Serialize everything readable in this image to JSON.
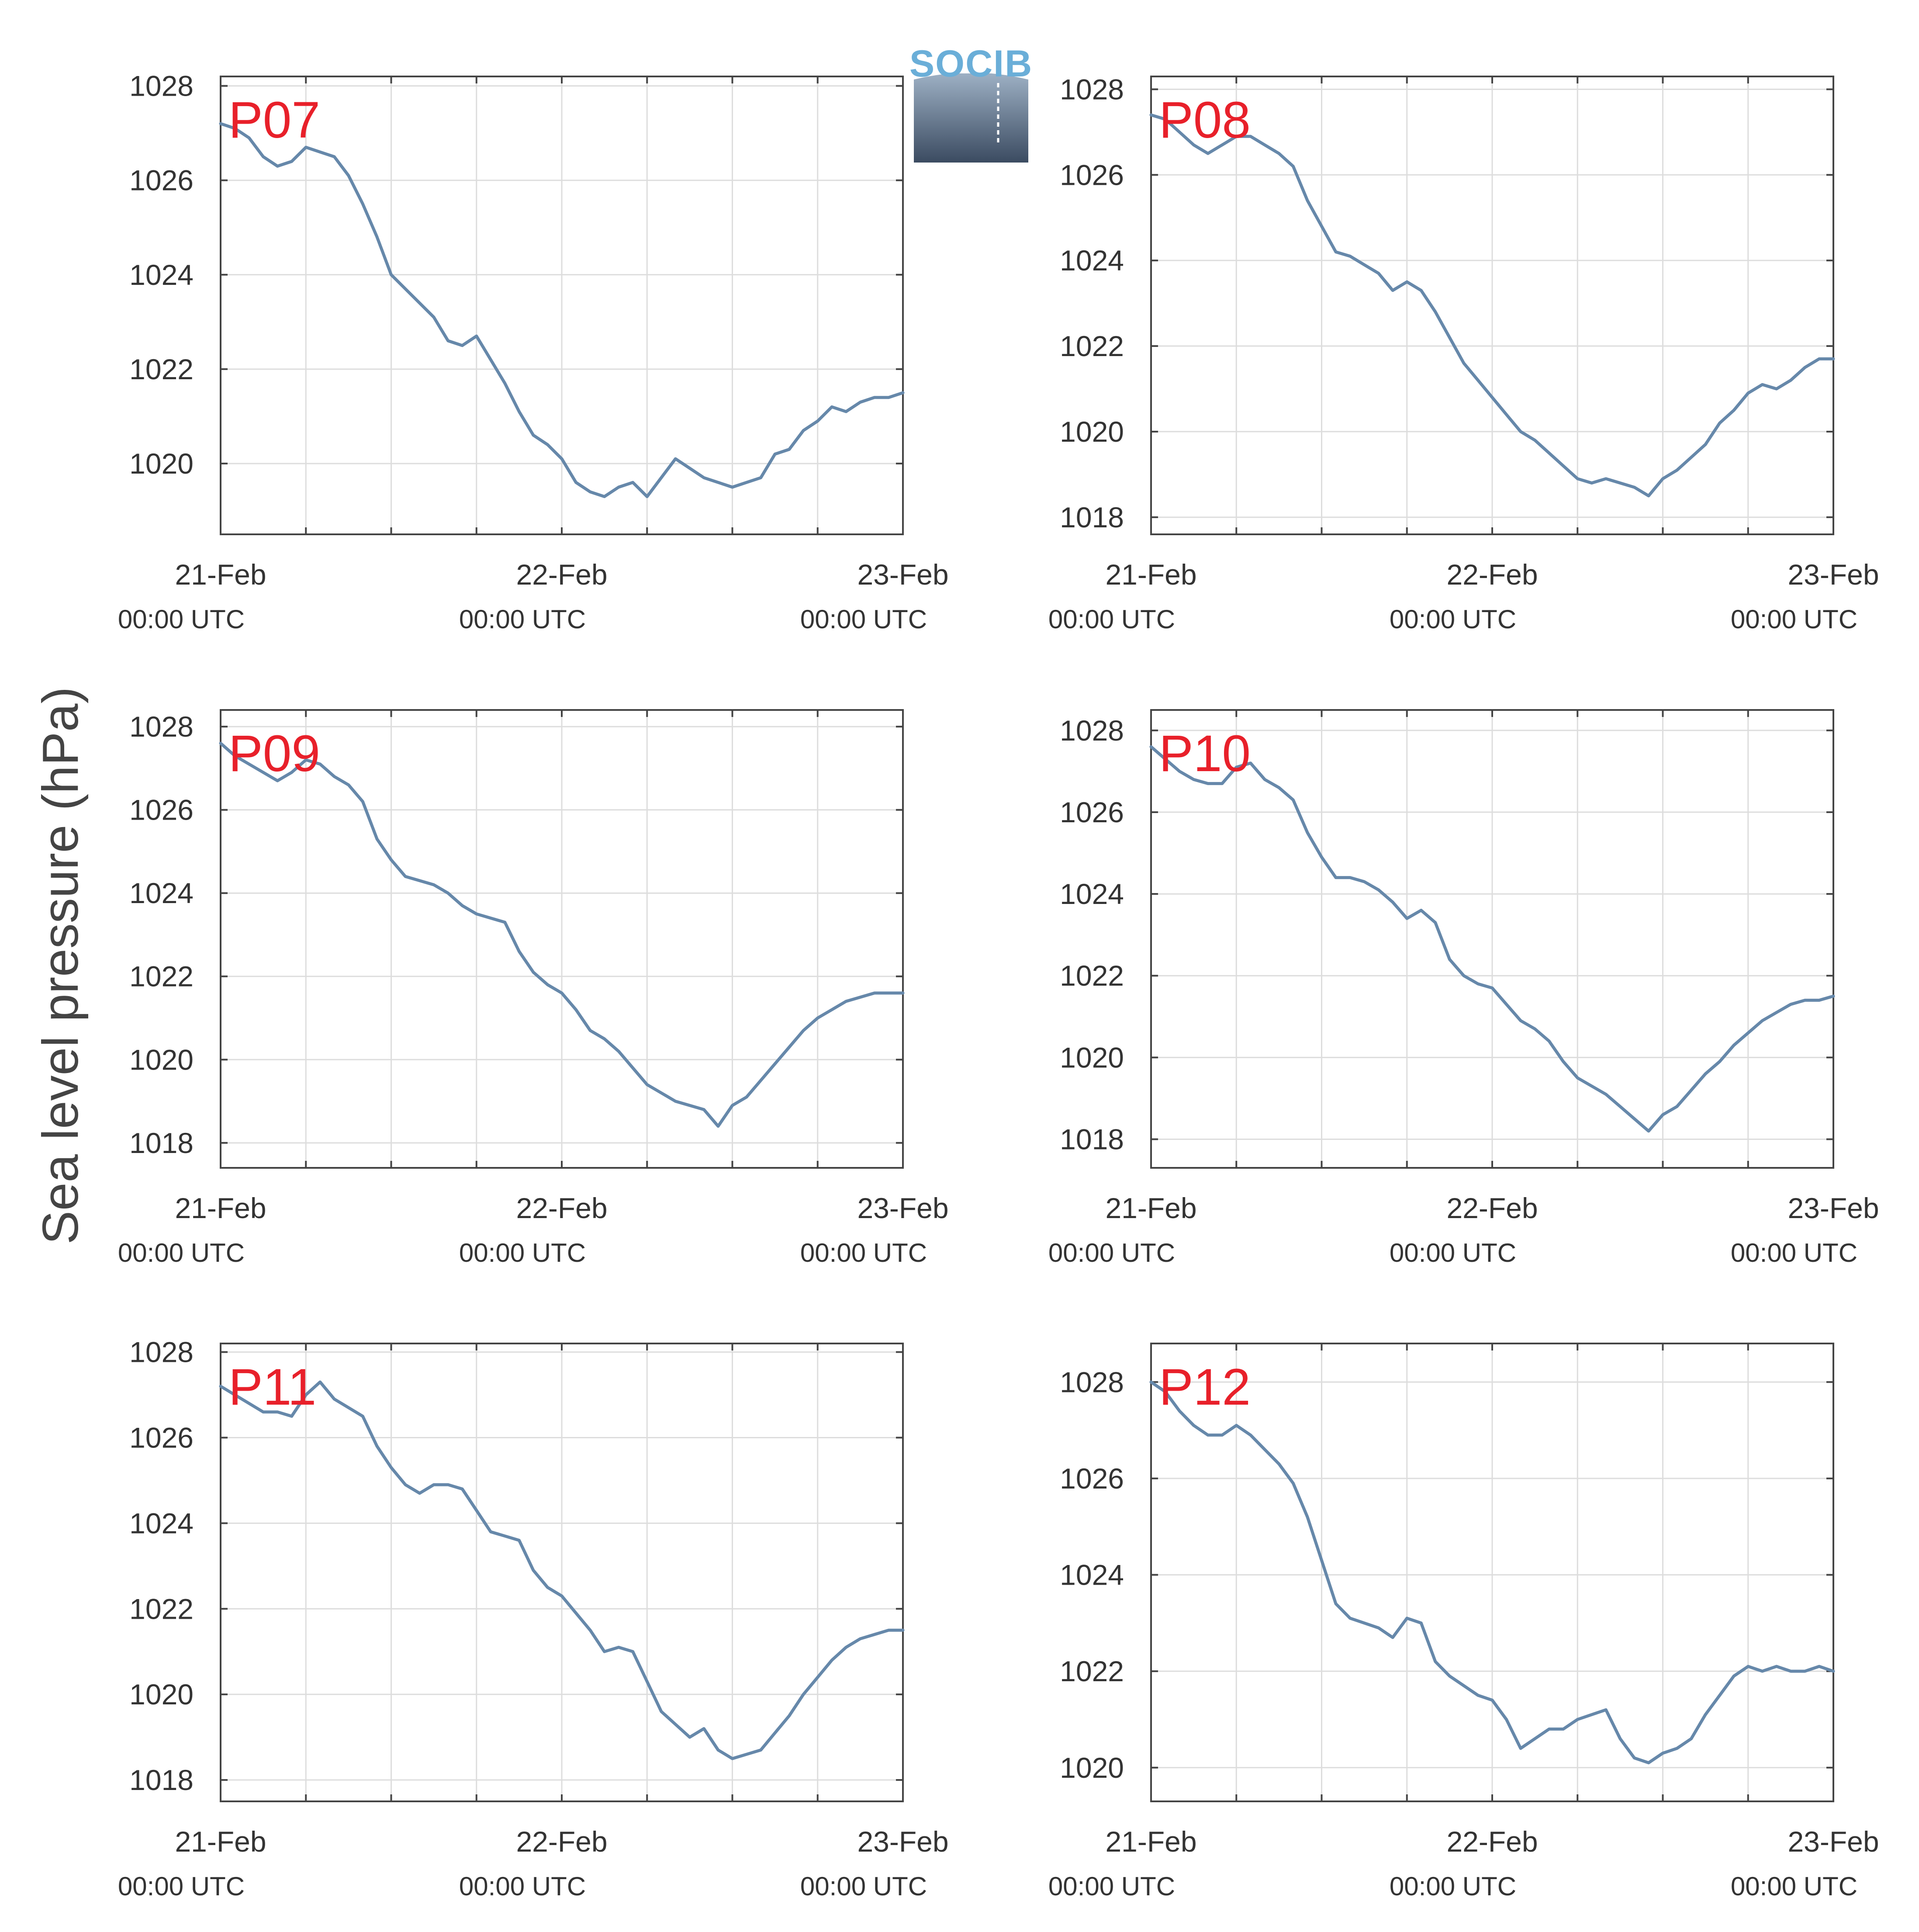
{
  "ylabel": "Sea level pressure (hPa)",
  "logo": {
    "text": "SOCIB"
  },
  "colors": {
    "line": "#6688aa",
    "label": "#e8202a",
    "grid": "#dddddd",
    "axis": "#444444",
    "logo_text": "#6aaed8"
  },
  "chart_data": [
    {
      "type": "line",
      "label": "P07",
      "ylim": [
        1018.5,
        1028.2
      ],
      "yticks": [
        1020,
        1022,
        1024,
        1026,
        1028
      ],
      "xlim": [
        0,
        48
      ],
      "xticks": [
        {
          "x": 0,
          "date": "21-Feb",
          "time": "00:00 UTC"
        },
        {
          "x": 24,
          "date": "22-Feb",
          "time": "00:00 UTC"
        },
        {
          "x": 48,
          "date": "23-Feb",
          "time": "00:00 UTC"
        }
      ],
      "x": [
        0,
        1,
        2,
        3,
        4,
        5,
        6,
        7,
        8,
        9,
        10,
        11,
        12,
        13,
        14,
        15,
        16,
        17,
        18,
        19,
        20,
        21,
        22,
        23,
        24,
        25,
        26,
        27,
        28,
        29,
        30,
        31,
        32,
        33,
        34,
        35,
        36,
        37,
        38,
        39,
        40,
        41,
        42,
        43,
        44,
        45,
        46,
        47,
        48
      ],
      "values": [
        1027.2,
        1027.1,
        1026.9,
        1026.5,
        1026.3,
        1026.4,
        1026.7,
        1026.6,
        1026.5,
        1026.1,
        1025.5,
        1024.8,
        1024.0,
        1023.7,
        1023.4,
        1023.1,
        1022.6,
        1022.5,
        1022.7,
        1022.2,
        1021.7,
        1021.1,
        1020.6,
        1020.4,
        1020.1,
        1019.6,
        1019.4,
        1019.3,
        1019.5,
        1019.6,
        1019.3,
        1019.7,
        1020.1,
        1019.9,
        1019.7,
        1019.6,
        1019.5,
        1019.6,
        1019.7,
        1020.2,
        1020.3,
        1020.7,
        1020.9,
        1021.2,
        1021.1,
        1021.3,
        1021.4,
        1021.4,
        1021.5
      ]
    },
    {
      "type": "line",
      "label": "P08",
      "ylim": [
        1017.6,
        1028.3
      ],
      "yticks": [
        1018,
        1020,
        1022,
        1024,
        1026,
        1028
      ],
      "xlim": [
        0,
        48
      ],
      "xticks": [
        {
          "x": 0,
          "date": "21-Feb",
          "time": "00:00 UTC"
        },
        {
          "x": 24,
          "date": "22-Feb",
          "time": "00:00 UTC"
        },
        {
          "x": 48,
          "date": "23-Feb",
          "time": "00:00 UTC"
        }
      ],
      "x": [
        0,
        1,
        2,
        3,
        4,
        5,
        6,
        7,
        8,
        9,
        10,
        11,
        12,
        13,
        14,
        15,
        16,
        17,
        18,
        19,
        20,
        21,
        22,
        23,
        24,
        25,
        26,
        27,
        28,
        29,
        30,
        31,
        32,
        33,
        34,
        35,
        36,
        37,
        38,
        39,
        40,
        41,
        42,
        43,
        44,
        45,
        46,
        47,
        48
      ],
      "values": [
        1027.4,
        1027.3,
        1027.0,
        1026.7,
        1026.5,
        1026.7,
        1026.9,
        1026.9,
        1026.7,
        1026.5,
        1026.2,
        1025.4,
        1024.8,
        1024.2,
        1024.1,
        1023.9,
        1023.7,
        1023.3,
        1023.5,
        1023.3,
        1022.8,
        1022.2,
        1021.6,
        1021.2,
        1020.8,
        1020.4,
        1020.0,
        1019.8,
        1019.5,
        1019.2,
        1018.9,
        1018.8,
        1018.9,
        1018.8,
        1018.7,
        1018.5,
        1018.9,
        1019.1,
        1019.4,
        1019.7,
        1020.2,
        1020.5,
        1020.9,
        1021.1,
        1021.0,
        1021.2,
        1021.5,
        1021.7,
        1021.7
      ]
    },
    {
      "type": "line",
      "label": "P09",
      "ylim": [
        1017.4,
        1028.4
      ],
      "yticks": [
        1018,
        1020,
        1022,
        1024,
        1026,
        1028
      ],
      "xlim": [
        0,
        48
      ],
      "xticks": [
        {
          "x": 0,
          "date": "21-Feb",
          "time": "00:00 UTC"
        },
        {
          "x": 24,
          "date": "22-Feb",
          "time": "00:00 UTC"
        },
        {
          "x": 48,
          "date": "23-Feb",
          "time": "00:00 UTC"
        }
      ],
      "x": [
        0,
        1,
        2,
        3,
        4,
        5,
        6,
        7,
        8,
        9,
        10,
        11,
        12,
        13,
        14,
        15,
        16,
        17,
        18,
        19,
        20,
        21,
        22,
        23,
        24,
        25,
        26,
        27,
        28,
        29,
        30,
        31,
        32,
        33,
        34,
        35,
        36,
        37,
        38,
        39,
        40,
        41,
        42,
        43,
        44,
        45,
        46,
        47,
        48
      ],
      "values": [
        1027.6,
        1027.3,
        1027.1,
        1026.9,
        1026.7,
        1026.9,
        1027.2,
        1027.1,
        1026.8,
        1026.6,
        1026.2,
        1025.3,
        1024.8,
        1024.4,
        1024.3,
        1024.2,
        1024.0,
        1023.7,
        1023.5,
        1023.4,
        1023.3,
        1022.6,
        1022.1,
        1021.8,
        1021.6,
        1021.2,
        1020.7,
        1020.5,
        1020.2,
        1019.8,
        1019.4,
        1019.2,
        1019.0,
        1018.9,
        1018.8,
        1018.4,
        1018.9,
        1019.1,
        1019.5,
        1019.9,
        1020.3,
        1020.7,
        1021.0,
        1021.2,
        1021.4,
        1021.5,
        1021.6,
        1021.6,
        1021.6
      ]
    },
    {
      "type": "line",
      "label": "P10",
      "ylim": [
        1017.3,
        1028.5
      ],
      "yticks": [
        1018,
        1020,
        1022,
        1024,
        1026,
        1028
      ],
      "xlim": [
        0,
        48
      ],
      "xticks": [
        {
          "x": 0,
          "date": "21-Feb",
          "time": "00:00 UTC"
        },
        {
          "x": 24,
          "date": "22-Feb",
          "time": "00:00 UTC"
        },
        {
          "x": 48,
          "date": "23-Feb",
          "time": "00:00 UTC"
        }
      ],
      "x": [
        0,
        1,
        2,
        3,
        4,
        5,
        6,
        7,
        8,
        9,
        10,
        11,
        12,
        13,
        14,
        15,
        16,
        17,
        18,
        19,
        20,
        21,
        22,
        23,
        24,
        25,
        26,
        27,
        28,
        29,
        30,
        31,
        32,
        33,
        34,
        35,
        36,
        37,
        38,
        39,
        40,
        41,
        42,
        43,
        44,
        45,
        46,
        47,
        48
      ],
      "values": [
        1027.6,
        1027.3,
        1027.0,
        1026.8,
        1026.7,
        1026.7,
        1027.1,
        1027.2,
        1026.8,
        1026.6,
        1026.3,
        1025.5,
        1024.9,
        1024.4,
        1024.4,
        1024.3,
        1024.1,
        1023.8,
        1023.4,
        1023.6,
        1023.3,
        1022.4,
        1022.0,
        1021.8,
        1021.7,
        1021.3,
        1020.9,
        1020.7,
        1020.4,
        1019.9,
        1019.5,
        1019.3,
        1019.1,
        1018.8,
        1018.5,
        1018.2,
        1018.6,
        1018.8,
        1019.2,
        1019.6,
        1019.9,
        1020.3,
        1020.6,
        1020.9,
        1021.1,
        1021.3,
        1021.4,
        1021.4,
        1021.5
      ]
    },
    {
      "type": "line",
      "label": "P11",
      "ylim": [
        1017.5,
        1028.2
      ],
      "yticks": [
        1018,
        1020,
        1022,
        1024,
        1026,
        1028
      ],
      "xlim": [
        0,
        48
      ],
      "xticks": [
        {
          "x": 0,
          "date": "21-Feb",
          "time": "00:00 UTC"
        },
        {
          "x": 24,
          "date": "22-Feb",
          "time": "00:00 UTC"
        },
        {
          "x": 48,
          "date": "23-Feb",
          "time": "00:00 UTC"
        }
      ],
      "x": [
        0,
        1,
        2,
        3,
        4,
        5,
        6,
        7,
        8,
        9,
        10,
        11,
        12,
        13,
        14,
        15,
        16,
        17,
        18,
        19,
        20,
        21,
        22,
        23,
        24,
        25,
        26,
        27,
        28,
        29,
        30,
        31,
        32,
        33,
        34,
        35,
        36,
        37,
        38,
        39,
        40,
        41,
        42,
        43,
        44,
        45,
        46,
        47,
        48
      ],
      "values": [
        1027.2,
        1027.0,
        1026.8,
        1026.6,
        1026.6,
        1026.5,
        1027.0,
        1027.3,
        1026.9,
        1026.7,
        1026.5,
        1025.8,
        1025.3,
        1024.9,
        1024.7,
        1024.9,
        1024.9,
        1024.8,
        1024.3,
        1023.8,
        1023.7,
        1023.6,
        1022.9,
        1022.5,
        1022.3,
        1021.9,
        1021.5,
        1021.0,
        1021.1,
        1021.0,
        1020.3,
        1019.6,
        1019.3,
        1019.0,
        1019.2,
        1018.7,
        1018.5,
        1018.6,
        1018.7,
        1019.1,
        1019.5,
        1020.0,
        1020.4,
        1020.8,
        1021.1,
        1021.3,
        1021.4,
        1021.5,
        1021.5
      ]
    },
    {
      "type": "line",
      "label": "P12",
      "ylim": [
        1019.3,
        1028.8
      ],
      "yticks": [
        1020,
        1022,
        1024,
        1026,
        1028
      ],
      "xlim": [
        0,
        48
      ],
      "xticks": [
        {
          "x": 0,
          "date": "21-Feb",
          "time": "00:00 UTC"
        },
        {
          "x": 24,
          "date": "22-Feb",
          "time": "00:00 UTC"
        },
        {
          "x": 48,
          "date": "23-Feb",
          "time": "00:00 UTC"
        }
      ],
      "x": [
        0,
        1,
        2,
        3,
        4,
        5,
        6,
        7,
        8,
        9,
        10,
        11,
        12,
        13,
        14,
        15,
        16,
        17,
        18,
        19,
        20,
        21,
        22,
        23,
        24,
        25,
        26,
        27,
        28,
        29,
        30,
        31,
        32,
        33,
        34,
        35,
        36,
        37,
        38,
        39,
        40,
        41,
        42,
        43,
        44,
        45,
        46,
        47,
        48
      ],
      "values": [
        1028.0,
        1027.8,
        1027.4,
        1027.1,
        1026.9,
        1026.9,
        1027.1,
        1026.9,
        1026.6,
        1026.3,
        1025.9,
        1025.2,
        1024.3,
        1023.4,
        1023.1,
        1023.0,
        1022.9,
        1022.7,
        1023.1,
        1023.0,
        1022.2,
        1021.9,
        1021.7,
        1021.5,
        1021.4,
        1021.0,
        1020.4,
        1020.6,
        1020.8,
        1020.8,
        1021.0,
        1021.1,
        1021.2,
        1020.6,
        1020.2,
        1020.1,
        1020.3,
        1020.4,
        1020.6,
        1021.1,
        1021.5,
        1021.9,
        1022.1,
        1022.0,
        1022.1,
        1022.0,
        1022.0,
        1022.1,
        1022.0
      ]
    }
  ]
}
